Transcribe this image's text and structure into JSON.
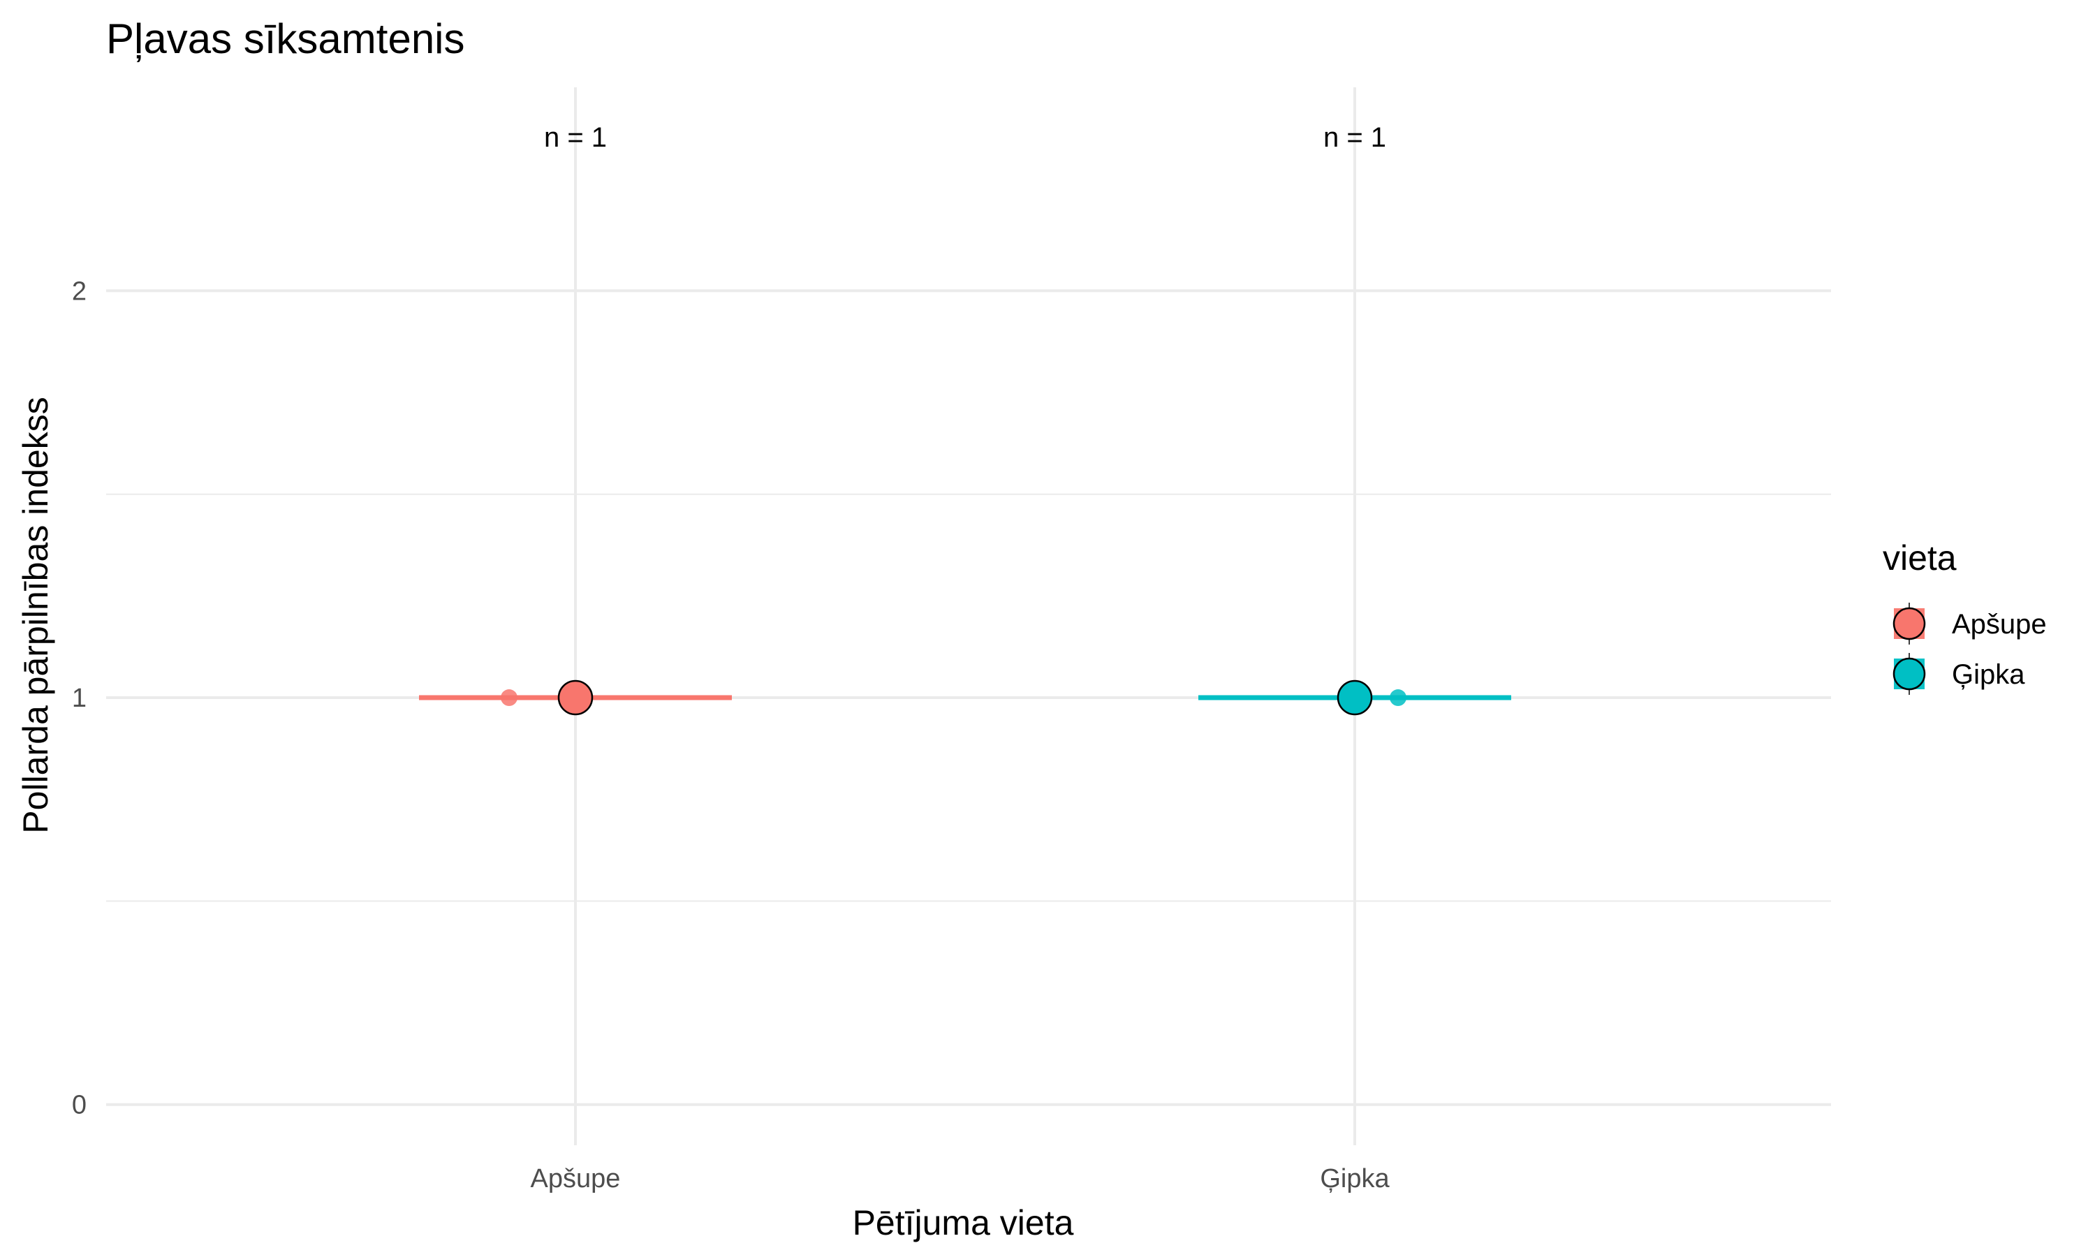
{
  "chart_data": {
    "type": "scatter",
    "title": "Pļavas sīksamtenis",
    "xlabel": "Pētījuma vieta",
    "ylabel": "Pollarda pārpilnības indekss",
    "categories": [
      "Apšupe",
      "Ģipka"
    ],
    "ylim": [
      -0.1,
      2.5
    ],
    "yticks": [
      0,
      1,
      2
    ],
    "grid": true,
    "legend": {
      "title": "vieta",
      "position": "right",
      "entries": [
        "Apšupe",
        "Ģipka"
      ]
    },
    "series": [
      {
        "name": "Apšupe",
        "color": "#F8766D",
        "mean": 1,
        "lower": 1,
        "upper": 1,
        "raw_points": [
          1
        ],
        "annotation": "n = 1"
      },
      {
        "name": "Ģipka",
        "color": "#00BFC4",
        "mean": 1,
        "lower": 1,
        "upper": 1,
        "raw_points": [
          1
        ],
        "annotation": "n = 1"
      }
    ]
  }
}
